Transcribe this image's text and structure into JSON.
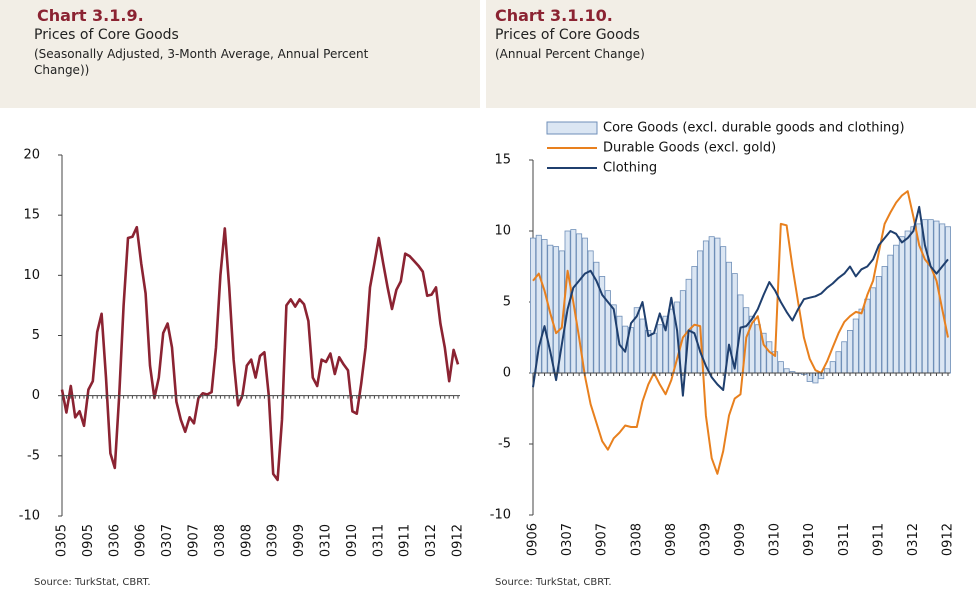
{
  "chart_data": [
    {
      "type": "line",
      "chart_number": "Chart 3.1.9.",
      "title": "Prices of Core Goods",
      "subtitle": "(Seasonally Adjusted, 3-Month Average, Annual Percent Change))",
      "source": "Source: TurkStat, CBRT.",
      "categories": [
        "0305",
        null,
        null,
        null,
        null,
        null,
        "0905",
        null,
        null,
        null,
        null,
        null,
        "0306",
        null,
        null,
        null,
        null,
        null,
        "0906",
        null,
        null,
        null,
        null,
        null,
        "0307",
        null,
        null,
        null,
        null,
        null,
        "0907",
        null,
        null,
        null,
        null,
        null,
        "0308",
        null,
        null,
        null,
        null,
        null,
        "0908",
        null,
        null,
        null,
        null,
        null,
        "0309",
        null,
        null,
        null,
        null,
        null,
        "0909",
        null,
        null,
        null,
        null,
        null,
        "0310",
        null,
        null,
        null,
        null,
        null,
        "0910",
        null,
        null,
        null,
        null,
        null,
        "0311",
        null,
        null,
        null,
        null,
        null,
        "0911",
        null,
        null,
        null,
        null,
        null,
        "0312",
        null,
        null,
        null,
        null,
        null,
        "0912"
      ],
      "series": [
        {
          "name": null,
          "color": "#8b2332",
          "values": [
            0.5,
            -1.4,
            0.8,
            -1.8,
            -1.3,
            -2.5,
            0.5,
            1.2,
            5.3,
            6.8,
            1.5,
            -4.8,
            -6.0,
            0,
            7.5,
            13.1,
            13.2,
            14.0,
            11,
            8.5,
            2.5,
            -0.2,
            1.5,
            5.2,
            6.0,
            4.0,
            -0.5,
            -2,
            -3,
            -1.8,
            -2.3,
            -0.2,
            0.2,
            0.1,
            0.3,
            4,
            10,
            13.9,
            9,
            3,
            -0.8,
            0,
            2.5,
            3,
            1.5,
            3.3,
            3.6,
            0,
            -6.5,
            -7,
            -2,
            7.5,
            8,
            7.4,
            8,
            7.6,
            6.2,
            1.5,
            0.8,
            3,
            2.8,
            3.5,
            1.8,
            3.2,
            2.6,
            2.1,
            -1.3,
            -1.5,
            1.0,
            4.0,
            9,
            11,
            13.1,
            11,
            9,
            7.2,
            8.8,
            9.5,
            11.8,
            11.6,
            11.2,
            10.8,
            10.3,
            8.3,
            8.4,
            9.0,
            6,
            4.0,
            1.2,
            3.8,
            2.6
          ]
        }
      ],
      "ylim": [
        -10,
        20
      ],
      "yticks": [
        -10,
        -5,
        0,
        5,
        10,
        15,
        20
      ]
    },
    {
      "type": "combo",
      "chart_number": "Chart 3.1.10.",
      "title": "Prices of Core Goods",
      "subtitle": "(Annual Percent Change)",
      "source": "Source: TurkStat, CBRT.",
      "categories": [
        "0906",
        null,
        null,
        null,
        null,
        null,
        "0307",
        null,
        null,
        null,
        null,
        null,
        "0907",
        null,
        null,
        null,
        null,
        null,
        "0308",
        null,
        null,
        null,
        null,
        null,
        "0908",
        null,
        null,
        null,
        null,
        null,
        "0309",
        null,
        null,
        null,
        null,
        null,
        "0909",
        null,
        null,
        null,
        null,
        null,
        "0310",
        null,
        null,
        null,
        null,
        null,
        "0910",
        null,
        null,
        null,
        null,
        null,
        "0311",
        null,
        null,
        null,
        null,
        null,
        "0911",
        null,
        null,
        null,
        null,
        null,
        "0312",
        null,
        null,
        null,
        null,
        null,
        "0912"
      ],
      "series": [
        {
          "name": "Core Goods (excl. durable goods and clothing)",
          "type": "bar",
          "color": "#dbe6f3",
          "edge": "#6f8fb8",
          "values": [
            9.5,
            9.7,
            9.4,
            9.0,
            8.9,
            8.6,
            10.0,
            10.1,
            9.8,
            9.5,
            8.6,
            7.8,
            6.8,
            5.8,
            4.8,
            4.0,
            3.3,
            3.2,
            4.6,
            3.8,
            3.0,
            2.8,
            3.4,
            4.0,
            4.5,
            5.0,
            5.8,
            6.6,
            7.5,
            8.6,
            9.3,
            9.6,
            9.5,
            8.9,
            7.8,
            7.0,
            5.5,
            4.6,
            4.0,
            3.4,
            2.8,
            2.2,
            1.5,
            0.8,
            0.3,
            0.1,
            0,
            -0.1,
            -0.6,
            -0.7,
            -0.4,
            0.3,
            0.8,
            1.5,
            2.2,
            3.0,
            3.8,
            4.5,
            5.2,
            6.0,
            6.8,
            7.5,
            8.3,
            9.0,
            9.6,
            10.0,
            10.3,
            10.5,
            10.8,
            10.8,
            10.7,
            10.5,
            10.3
          ]
        },
        {
          "name": "Durable Goods (excl. gold)",
          "type": "line",
          "color": "#e8801e",
          "values": [
            6.5,
            7.0,
            5.8,
            4.2,
            2.8,
            3.2,
            7.2,
            5.0,
            2.5,
            -0.2,
            -2.2,
            -3.5,
            -4.8,
            -5.4,
            -4.6,
            -4.2,
            -3.7,
            -3.8,
            -3.8,
            -2.0,
            -0.8,
            0.0,
            -0.8,
            -1.5,
            -0.5,
            1.0,
            2.5,
            3.0,
            3.4,
            3.3,
            -3.0,
            -6.0,
            -7.1,
            -5.5,
            -3.0,
            -1.8,
            -1.5,
            2.5,
            3.5,
            4.0,
            2.0,
            1.5,
            1.2,
            10.5,
            10.4,
            7.5,
            5.0,
            2.5,
            1.0,
            0.2,
            0.0,
            0.8,
            1.8,
            2.8,
            3.6,
            4.0,
            4.3,
            4.2,
            5.5,
            6.5,
            8.5,
            10.5,
            11.3,
            12.0,
            12.5,
            12.8,
            11,
            9,
            8,
            7.5,
            6.5,
            4.5,
            2.5
          ]
        },
        {
          "name": "Clothing",
          "type": "line",
          "color": "#1f3f6e",
          "values": [
            -1.0,
            1.8,
            3.3,
            1.5,
            -0.5,
            2.0,
            4.5,
            6.0,
            6.5,
            7.0,
            7.2,
            6.5,
            5.5,
            5.0,
            4.5,
            2.0,
            1.5,
            3.5,
            4.0,
            5.0,
            2.6,
            2.8,
            4.2,
            3.0,
            5.3,
            3.0,
            -1.6,
            3.0,
            2.8,
            1.5,
            0.5,
            -0.3,
            -0.8,
            -1.2,
            2.0,
            0.3,
            3.2,
            3.3,
            3.8,
            4.5,
            5.5,
            6.4,
            5.8,
            5.0,
            4.3,
            3.7,
            4.5,
            5.2,
            5.3,
            5.4,
            5.6,
            6.0,
            6.3,
            6.7,
            7.0,
            7.5,
            6.8,
            7.3,
            7.5,
            8.0,
            9.0,
            9.5,
            10.0,
            9.8,
            9.2,
            9.5,
            10.0,
            11.7,
            9.0,
            7.5,
            7.0,
            7.5,
            8.0
          ]
        }
      ],
      "ylim": [
        -10,
        15
      ],
      "yticks": [
        -10,
        -5,
        0,
        5,
        10,
        15
      ],
      "legend": "top-left"
    }
  ]
}
